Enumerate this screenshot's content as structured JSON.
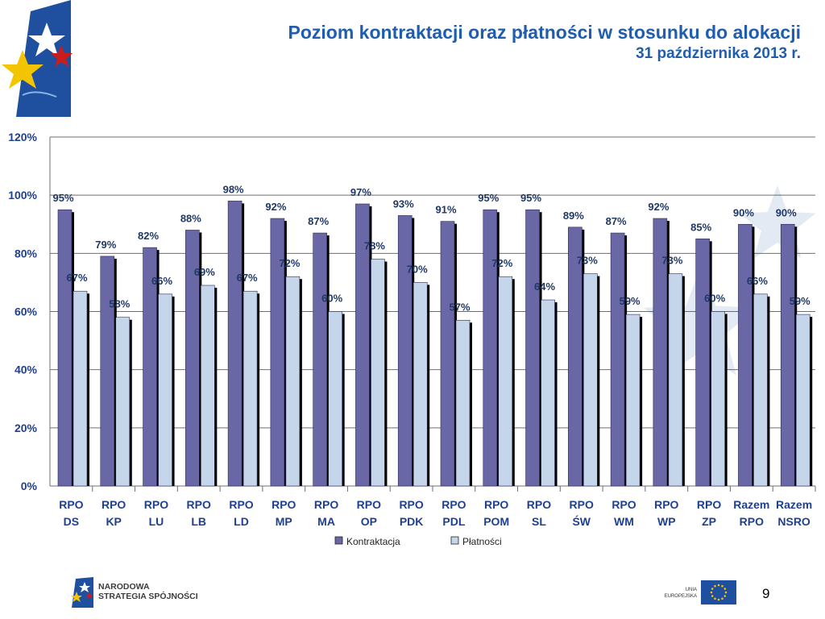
{
  "header": {
    "title": "Poziom kontraktacji oraz płatności w stosunku do alokacji",
    "subtitle": "31 października 2013 r."
  },
  "footer": {
    "nss_logo_lines": [
      "NARODOWA",
      "STRATEGIA SPÓJNOŚCI"
    ],
    "ue_logo_lines": [
      "UNIA",
      "EUROPEJSKA"
    ],
    "page_number": "9"
  },
  "colors": {
    "title": "#1f5eae",
    "kontraktacja": "#6a67a6",
    "platnosci": "#c5d5ea",
    "label_text": "#1f3864",
    "axis_text": "#1f3f8f",
    "gridline": "#6f6f6f"
  },
  "chart_data": {
    "type": "bar",
    "categories": [
      "RPO DS",
      "RPO KP",
      "RPO LU",
      "RPO LB",
      "RPO LD",
      "RPO MP",
      "RPO MA",
      "RPO OP",
      "RPO PDK",
      "RPO PDL",
      "RPO POM",
      "RPO SL",
      "RPO ŚW",
      "RPO WM",
      "RPO WP",
      "RPO ZP",
      "Razem RPO",
      "Razem NSRO"
    ],
    "category_lines": [
      [
        "RPO",
        "DS"
      ],
      [
        "RPO",
        "KP"
      ],
      [
        "RPO",
        "LU"
      ],
      [
        "RPO",
        "LB"
      ],
      [
        "RPO",
        "LD"
      ],
      [
        "RPO",
        "MP"
      ],
      [
        "RPO",
        "MA"
      ],
      [
        "RPO",
        "OP"
      ],
      [
        "RPO",
        "PDK"
      ],
      [
        "RPO",
        "PDL"
      ],
      [
        "RPO",
        "POM"
      ],
      [
        "RPO",
        "SL"
      ],
      [
        "RPO",
        "ŚW"
      ],
      [
        "RPO",
        "WM"
      ],
      [
        "RPO",
        "WP"
      ],
      [
        "RPO",
        "ZP"
      ],
      [
        "Razem",
        "RPO"
      ],
      [
        "Razem",
        "NSRO"
      ]
    ],
    "series": [
      {
        "name": "Kontraktacja",
        "values": [
          95,
          79,
          82,
          88,
          98,
          92,
          87,
          97,
          93,
          91,
          95,
          95,
          89,
          87,
          92,
          85,
          90,
          90
        ],
        "labels": [
          "95%",
          "79%",
          "82%",
          "88%",
          "98%",
          "92%",
          "87%",
          "97%",
          "93%",
          "91%",
          "95%",
          "95%",
          "89%",
          "87%",
          "92%",
          "85%",
          "90%",
          "90%"
        ]
      },
      {
        "name": "Płatności",
        "values": [
          67,
          58,
          66,
          69,
          67,
          72,
          60,
          78,
          70,
          57,
          72,
          64,
          73,
          59,
          73,
          60,
          66,
          59
        ],
        "labels": [
          "67%",
          "58%",
          "66%",
          "69%",
          "67%",
          "72%",
          "60%",
          "78%",
          "70%",
          "57%",
          "72%",
          "64%",
          "73%",
          "59%",
          "73%",
          "60%",
          "66%",
          "59%"
        ]
      }
    ],
    "ylim": [
      0,
      120
    ],
    "yticks": [
      0,
      20,
      40,
      60,
      80,
      100,
      120
    ],
    "ytick_labels": [
      "0%",
      "20%",
      "40%",
      "60%",
      "80%",
      "100%",
      "120%"
    ],
    "grid": true,
    "legend_position": "bottom-center",
    "title": "Poziom kontraktacji oraz płatności w stosunku do alokacji",
    "xlabel": "",
    "ylabel": ""
  }
}
